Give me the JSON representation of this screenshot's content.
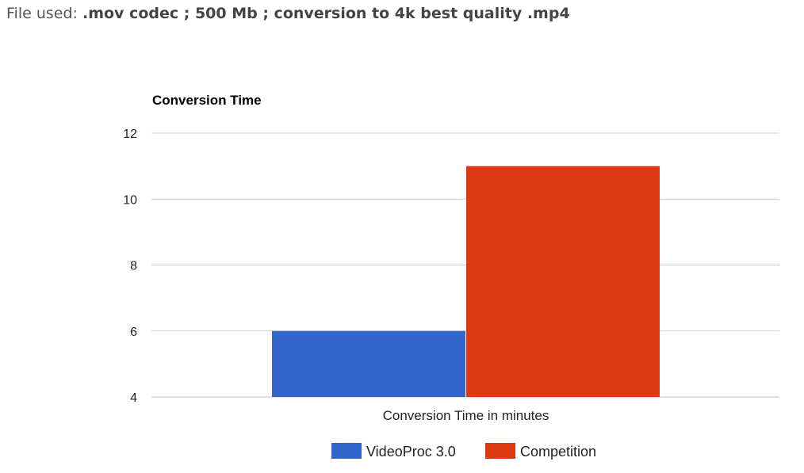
{
  "header": {
    "prefix": "File used:",
    "file_info": ".mov codec ; 500 Mb ; conversion to 4k best quality .mp4"
  },
  "chart_data": {
    "type": "bar",
    "title": "Conversion Time",
    "xlabel": "Conversion Time in minutes",
    "ylabel": "",
    "categories": [
      "Conversion Time in minutes"
    ],
    "series": [
      {
        "name": "VideoProc 3.0",
        "values": [
          6
        ],
        "color": "#3366cc"
      },
      {
        "name": "Competition",
        "values": [
          11
        ],
        "color": "#dc3912"
      }
    ],
    "ylim": [
      4,
      12
    ],
    "yticks": [
      "4",
      "6",
      "8",
      "10",
      "12"
    ],
    "grid": true,
    "legend_position": "bottom"
  }
}
